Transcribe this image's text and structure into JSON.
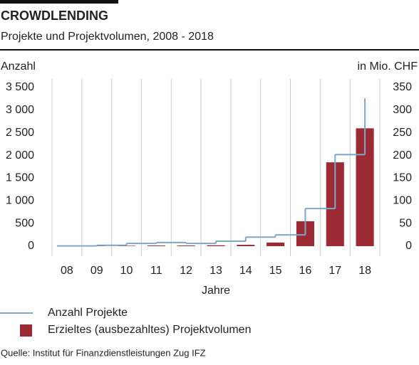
{
  "chart_data": {
    "type": "bar-line",
    "title": "CROWDLENDING",
    "subtitle": "Projekte und Projektvolumen, 2008 - 2018",
    "y_label": "Anzahl",
    "y2_label": "in Mio. CHF",
    "x_label": "Jahre",
    "categories": [
      "08",
      "09",
      "10",
      "11",
      "12",
      "13",
      "14",
      "15",
      "16",
      "17",
      "18"
    ],
    "series": [
      {
        "name": "Anzahl Projekte",
        "type": "step",
        "color": "#7fa6c6",
        "axis": "y",
        "values": [
          5,
          20,
          60,
          80,
          60,
          110,
          200,
          250,
          830,
          2020,
          3260
        ]
      },
      {
        "name": "Erzieltes (ausbezahltes) Projektvolumen",
        "type": "bar",
        "color": "#9b2a35",
        "axis": "y2",
        "values": [
          0.5,
          0.8,
          1,
          1.5,
          1.5,
          2,
          3,
          8,
          55,
          185,
          260
        ]
      }
    ],
    "ylim": [
      0,
      3500
    ],
    "yticks": [
      0,
      500,
      {
        "value": 1000,
        "label": "1 000"
      },
      {
        "value": 1500,
        "label": "1 500"
      },
      {
        "value": 2000,
        "label": "2 000"
      },
      {
        "value": 2500,
        "label": "2 500"
      },
      {
        "value": 3000,
        "label": "3 000"
      },
      {
        "value": 3500,
        "label": "3 500"
      }
    ],
    "y2lim": [
      0,
      350
    ],
    "y2ticks": [
      0,
      50,
      100,
      150,
      200,
      250,
      300,
      350
    ],
    "grid": true,
    "source": "Quelle: Institut für Finanzdienstleistungen Zug IFZ"
  }
}
